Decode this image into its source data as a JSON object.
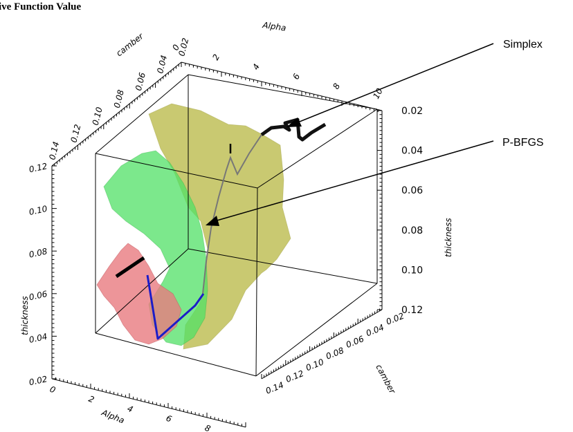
{
  "title": "ive Function Value",
  "chart_data": {
    "type": "surface3d",
    "title": "ive Function Value",
    "axes": {
      "alpha": {
        "label": "Alpha",
        "ticks": [
          "0",
          "2",
          "4",
          "6",
          "8",
          "10"
        ],
        "range": [
          0,
          10
        ]
      },
      "camber": {
        "label": "camber",
        "ticks": [
          "0.02",
          "0.04",
          "0.06",
          "0.08",
          "0.10",
          "0.12",
          "0.14"
        ],
        "range": [
          0.02,
          0.14
        ]
      },
      "thickness": {
        "label": "thickness",
        "ticks": [
          "0.02",
          "0.04",
          "0.06",
          "0.08",
          "0.10",
          "0.12"
        ],
        "range": [
          0.02,
          0.12
        ]
      },
      "camber_top_ticks": [
        "0.14",
        "0.12",
        "0.10",
        "0.08",
        "0.06",
        "0.04",
        "0.02"
      ],
      "thickness_right_ticks": [
        "0.12",
        "0.10",
        "0.08",
        "0.06",
        "0.04",
        "0.02"
      ]
    },
    "series": [
      {
        "name": "Simplex",
        "color": "#000000"
      },
      {
        "name": "P-BFGS",
        "color": "#1a1acc"
      }
    ],
    "surface_colors": {
      "red": "#e8787c",
      "green": "#55dd6a",
      "olive": "#b4b43a"
    },
    "annotations": [
      {
        "text": "Simplex"
      },
      {
        "text": "P-BFGS"
      }
    ]
  }
}
